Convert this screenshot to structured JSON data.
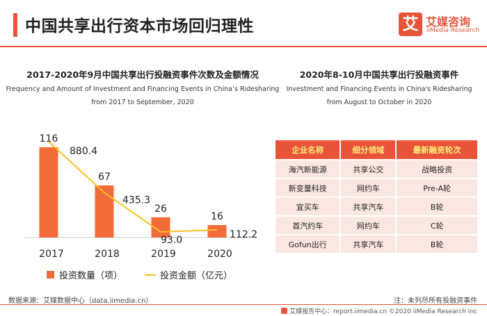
{
  "header": {
    "title": "中国共享出行资本市场回归理性",
    "logo_mark": "艾",
    "logo_cn": "艾媒咨询",
    "logo_en": "iiMedia Research"
  },
  "left_chart": {
    "title_cn": "2017-2020年9月中国共享出行投融资事件次数及金额情况",
    "title_en_1": "Frequency and Amount of Investment and Financing Events in China’s Ridesharing",
    "title_en_2": "from 2017 to September, 2020"
  },
  "chart_data": {
    "type": "bar",
    "categories": [
      "2017",
      "2018",
      "2019",
      "2020"
    ],
    "series": [
      {
        "name": "投资数量（项）",
        "type": "bar",
        "values": [
          116,
          67,
          26,
          16
        ],
        "color": "#f26b3a"
      },
      {
        "name": "投资金额（亿元）",
        "type": "line",
        "values": [
          880.4,
          435.3,
          93.0,
          112.2
        ],
        "value_labels": [
          "880.4",
          "435.3",
          "93.0",
          "112.2"
        ],
        "color": "#f7c11e"
      }
    ],
    "legend_position": "bottom",
    "grid": false
  },
  "right_table": {
    "title_cn": "2020年8-10月中国共享出行投融资事件",
    "title_en_1": "Investment and Financing Events in China's Ridesharing",
    "title_en_2": "from August to October in 2020",
    "headers": [
      "企业名称",
      "细分领域",
      "最新融资轮次"
    ],
    "rows": [
      [
        "海汽新能源",
        "共享公交",
        "战略投资"
      ],
      [
        "新变量科技",
        "网约车",
        "Pre-A轮"
      ],
      [
        "宜买车",
        "共享汽车",
        "B轮"
      ],
      [
        "首汽约车",
        "网约车",
        "C轮"
      ],
      [
        "Gofun出行",
        "共享汽车",
        "B轮"
      ]
    ],
    "header_bg": "#e8543a",
    "header_text": "#ffeb7a",
    "row_bg": "#fbe7e1"
  },
  "footer": {
    "source": "数据来源：艾媒数据中心（data.iimedia.cn）",
    "note": "注：未列尽所有投融资事件",
    "report": "艾媒报告中心：report.iimedia.cn ©2020  iiMedia Research  Inc"
  }
}
